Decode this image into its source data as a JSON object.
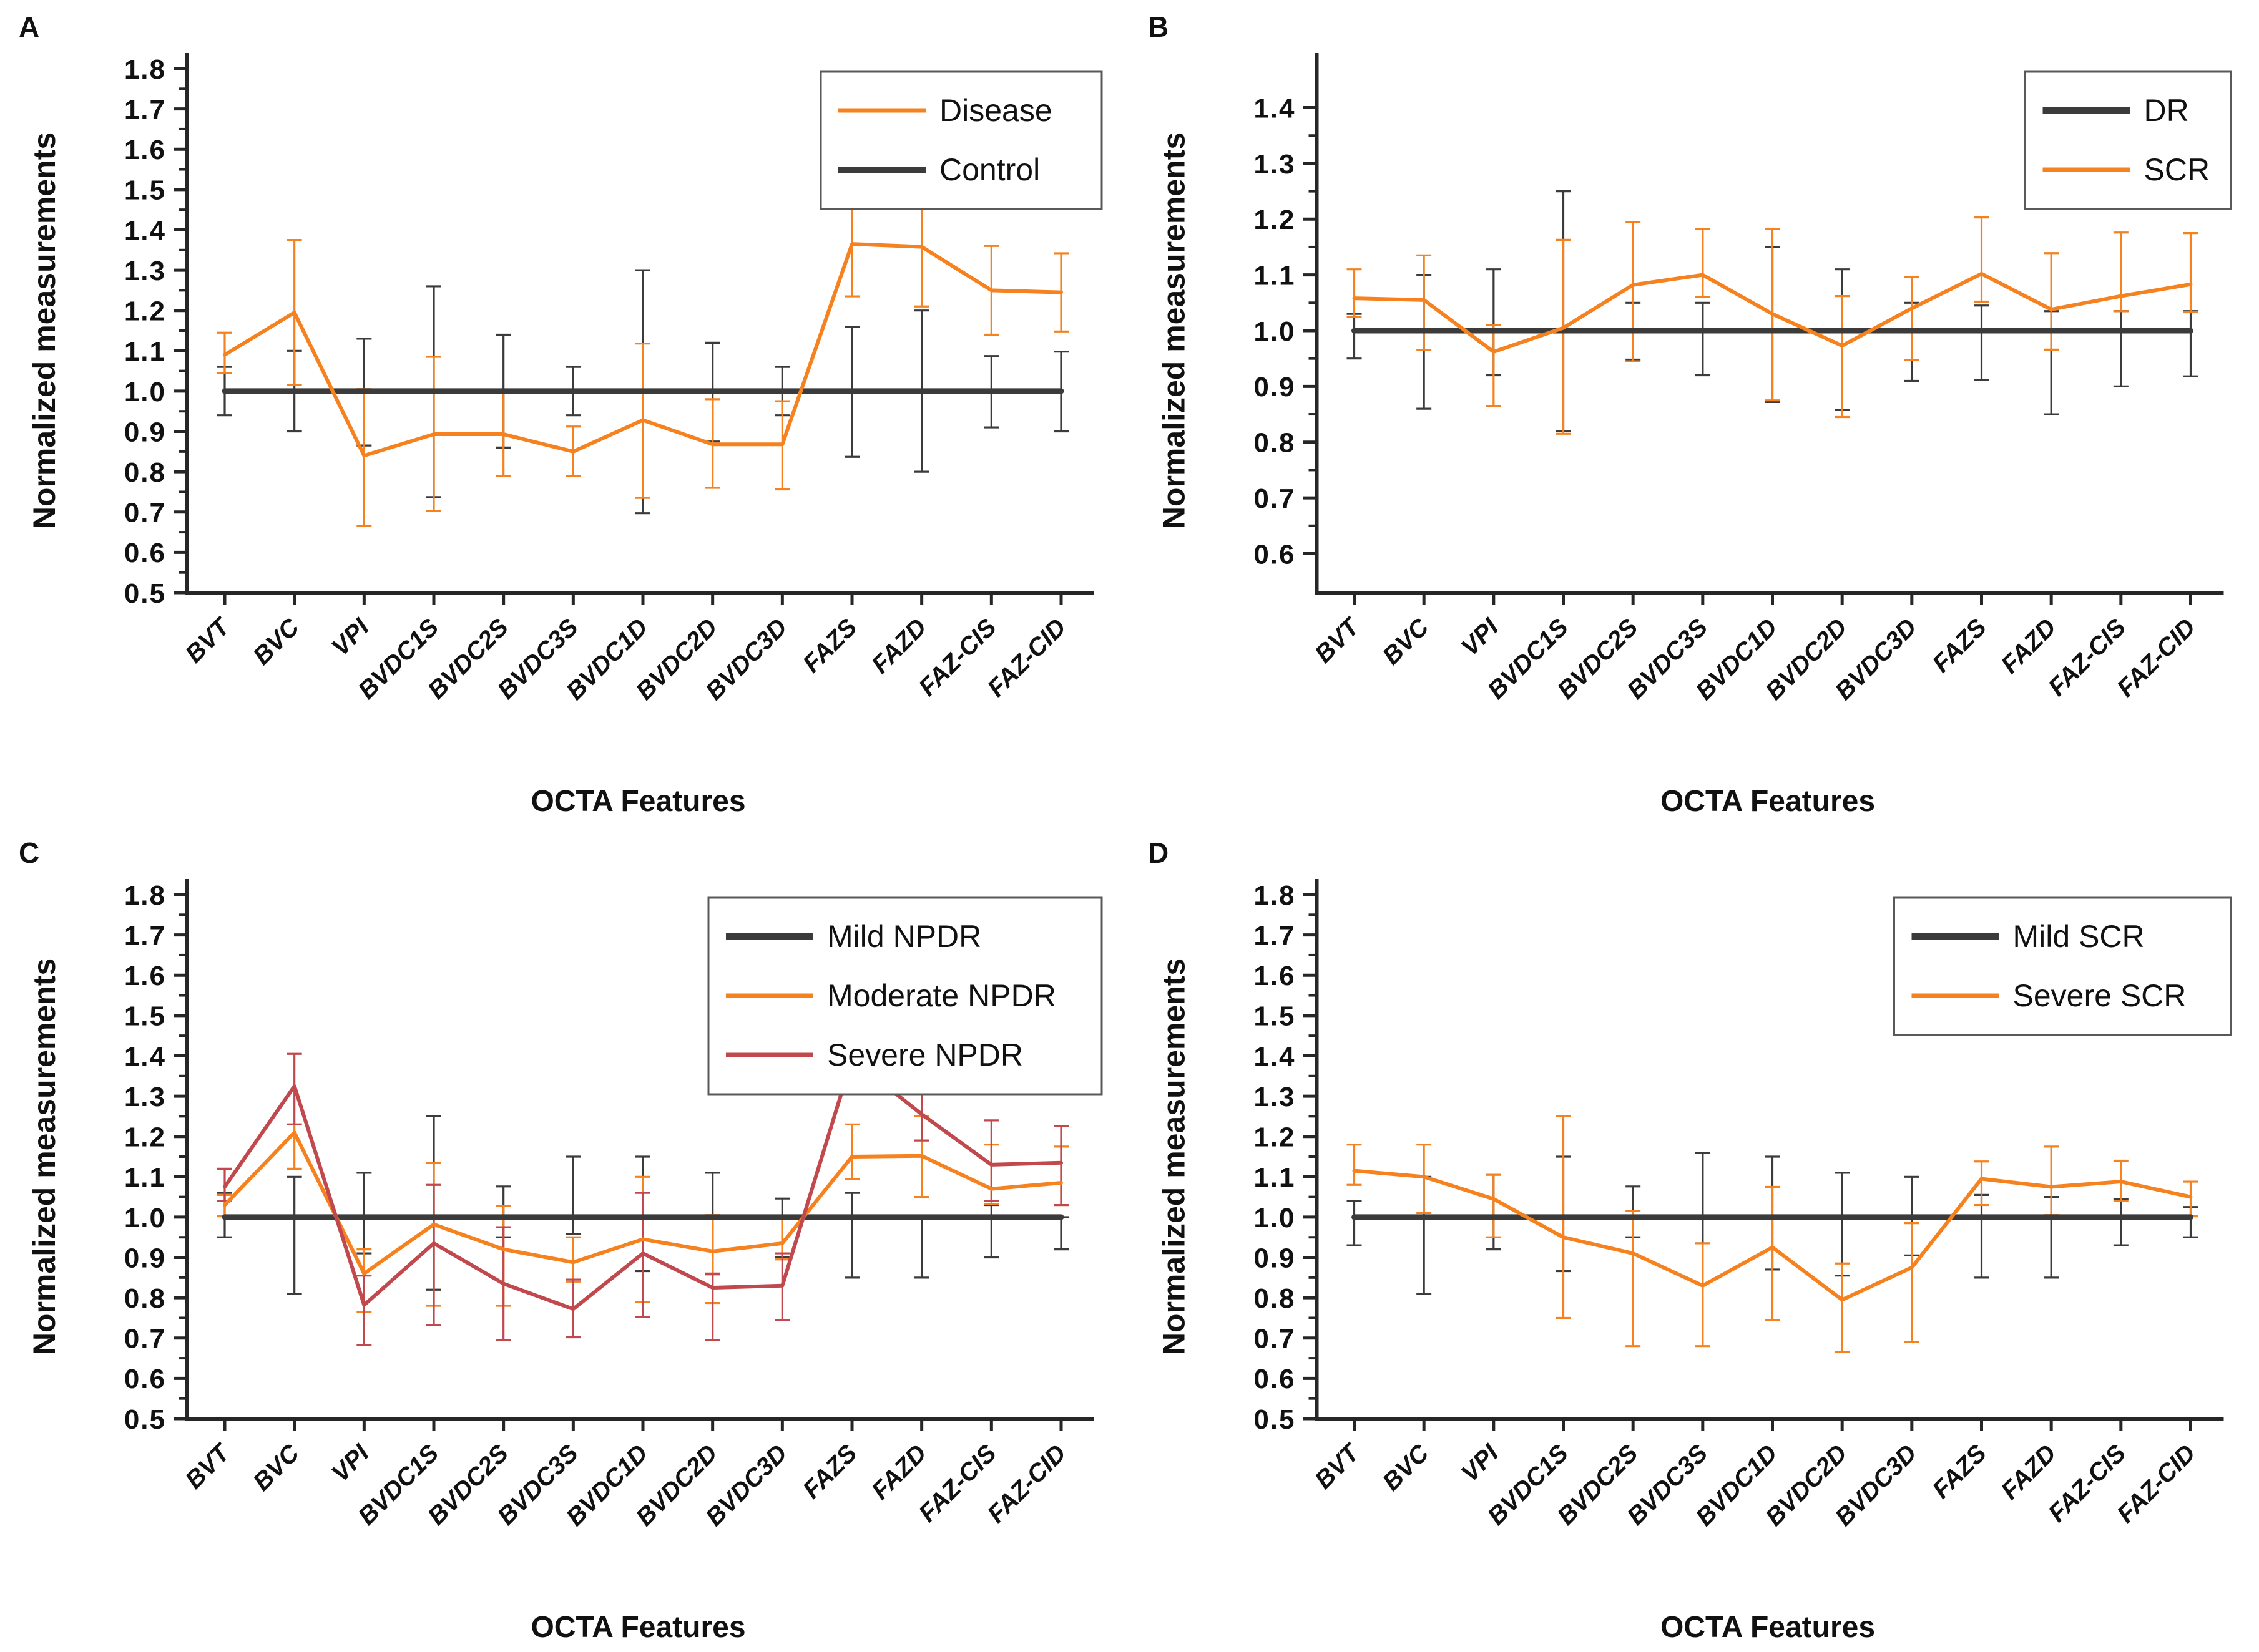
{
  "figure": {
    "background": "#ffffff",
    "axis_color": "#262626",
    "text_color": "#111111",
    "xlabel": "OCTA Features",
    "ylabel": "Normalized measurements",
    "panel_letters": [
      "A",
      "B",
      "C",
      "D"
    ]
  },
  "chart_data": [
    {
      "panel": "A",
      "type": "line",
      "title": "",
      "xlabel": "OCTA Features",
      "ylabel": "Normalized measurements",
      "categories": [
        "BVT",
        "BVC",
        "VPI",
        "BVDC1S",
        "BVDC2S",
        "BVDC3S",
        "BVDC1D",
        "BVDC2D",
        "BVDC3D",
        "FAZS",
        "FAZD",
        "FAZ-CIS",
        "FAZ-CID"
      ],
      "ylim": [
        0.5,
        1.8
      ],
      "yticks": [
        0.5,
        0.6,
        0.7,
        0.8,
        0.9,
        1.0,
        1.1,
        1.2,
        1.3,
        1.4,
        1.5,
        1.6,
        1.7,
        1.8
      ],
      "grid": false,
      "legend_position": "top-right",
      "legend_order": [
        1,
        0
      ],
      "series": [
        {
          "name": "Control",
          "color": "#3b3b3b",
          "lw": 9,
          "values": [
            1.0,
            1.0,
            1.0,
            1.0,
            1.0,
            1.0,
            1.0,
            1.0,
            1.0,
            1.0,
            1.0,
            1.0,
            1.0
          ],
          "err_lo": [
            0.94,
            0.9,
            0.865,
            0.737,
            0.86,
            0.94,
            0.697,
            0.875,
            0.94,
            0.837,
            0.8,
            0.91,
            0.9
          ],
          "err_hi": [
            1.06,
            1.1,
            1.13,
            1.26,
            1.14,
            1.06,
            1.3,
            1.12,
            1.06,
            1.16,
            1.2,
            1.087,
            1.098
          ]
        },
        {
          "name": "Disease",
          "color": "#f5821f",
          "lw": 6,
          "values": [
            1.09,
            1.195,
            0.84,
            0.893,
            0.893,
            0.85,
            0.928,
            0.868,
            0.868,
            1.365,
            1.358,
            1.25,
            1.245
          ],
          "err_lo": [
            1.045,
            1.015,
            0.665,
            0.703,
            0.79,
            0.79,
            0.735,
            0.76,
            0.756,
            1.235,
            1.21,
            1.14,
            1.148
          ],
          "err_hi": [
            1.145,
            1.375,
            1.005,
            1.085,
            0.995,
            0.912,
            1.118,
            0.98,
            0.975,
            1.498,
            1.51,
            1.36,
            1.342
          ]
        }
      ]
    },
    {
      "panel": "B",
      "type": "line",
      "title": "",
      "xlabel": "OCTA Features",
      "ylabel": "Normalized measurements",
      "categories": [
        "BVT",
        "BVC",
        "VPI",
        "BVDC1S",
        "BVDC2S",
        "BVDC3S",
        "BVDC1D",
        "BVDC2D",
        "BVDC3D",
        "FAZS",
        "FAZD",
        "FAZ-CIS",
        "FAZ-CID"
      ],
      "ylim": [
        0.53,
        1.47
      ],
      "yticks": [
        0.6,
        0.7,
        0.8,
        0.9,
        1.0,
        1.1,
        1.2,
        1.3,
        1.4
      ],
      "grid": false,
      "legend_position": "top-right",
      "legend_order": [
        0,
        1
      ],
      "series": [
        {
          "name": "DR",
          "color": "#3b3b3b",
          "lw": 9,
          "values": [
            1.0,
            1.0,
            1.0,
            1.0,
            1.0,
            1.0,
            1.0,
            1.0,
            1.0,
            1.0,
            1.0,
            1.0,
            1.0
          ],
          "err_lo": [
            0.95,
            0.86,
            0.92,
            0.82,
            0.948,
            0.92,
            0.872,
            0.858,
            0.91,
            0.912,
            0.85,
            0.9,
            0.918
          ],
          "err_hi": [
            1.03,
            1.1,
            1.11,
            1.25,
            1.05,
            1.05,
            1.15,
            1.11,
            1.05,
            1.045,
            1.035,
            1.035,
            1.035
          ]
        },
        {
          "name": "SCR",
          "color": "#f5821f",
          "lw": 6,
          "values": [
            1.058,
            1.055,
            0.962,
            1.005,
            1.082,
            1.1,
            1.03,
            0.973,
            1.04,
            1.102,
            1.038,
            1.062,
            1.083
          ],
          "err_lo": [
            1.025,
            0.965,
            0.865,
            0.815,
            0.945,
            1.06,
            0.875,
            0.845,
            0.947,
            1.052,
            0.966,
            1.035,
            1.033
          ],
          "err_hi": [
            1.11,
            1.135,
            1.01,
            1.163,
            1.195,
            1.182,
            1.182,
            1.062,
            1.096,
            1.203,
            1.139,
            1.176,
            1.175
          ]
        }
      ]
    },
    {
      "panel": "C",
      "type": "line",
      "title": "",
      "xlabel": "OCTA Features",
      "ylabel": "Normalized measurements",
      "categories": [
        "BVT",
        "BVC",
        "VPI",
        "BVDC1S",
        "BVDC2S",
        "BVDC3S",
        "BVDC1D",
        "BVDC2D",
        "BVDC3D",
        "FAZS",
        "FAZD",
        "FAZ-CIS",
        "FAZ-CID"
      ],
      "ylim": [
        0.5,
        1.8
      ],
      "yticks": [
        0.5,
        0.6,
        0.7,
        0.8,
        0.9,
        1.0,
        1.1,
        1.2,
        1.3,
        1.4,
        1.5,
        1.6,
        1.7,
        1.8
      ],
      "grid": false,
      "legend_position": "top-right",
      "legend_order": [
        0,
        1,
        2
      ],
      "series": [
        {
          "name": "Mild NPDR",
          "color": "#3b3b3b",
          "lw": 9,
          "values": [
            1.0,
            1.0,
            1.0,
            1.0,
            1.0,
            1.0,
            1.0,
            1.0,
            1.0,
            1.0,
            1.0,
            1.0,
            1.0
          ],
          "err_lo": [
            0.95,
            0.81,
            0.91,
            0.82,
            0.95,
            0.958,
            0.866,
            0.858,
            0.9,
            0.85,
            0.85,
            0.9,
            0.92
          ],
          "err_hi": [
            1.06,
            1.1,
            1.11,
            1.25,
            1.076,
            1.15,
            1.15,
            1.11,
            1.046,
            1.06,
            1.0,
            1.03,
            1.0
          ]
        },
        {
          "name": "Moderate NPDR",
          "color": "#f5821f",
          "lw": 6,
          "values": [
            1.03,
            1.21,
            0.86,
            0.982,
            0.92,
            0.888,
            0.945,
            0.915,
            0.935,
            1.15,
            1.152,
            1.07,
            1.085
          ],
          "err_lo": [
            1.002,
            1.12,
            0.765,
            0.78,
            0.78,
            0.84,
            0.79,
            0.787,
            0.895,
            1.095,
            1.05,
            1.032,
            1.03
          ],
          "err_hi": [
            1.055,
            1.23,
            0.92,
            1.135,
            1.028,
            0.95,
            1.1,
            1.005,
            1.0,
            1.23,
            1.25,
            1.18,
            1.175
          ]
        },
        {
          "name": "Severe NPDR",
          "color": "#c1494e",
          "lw": 6,
          "values": [
            1.075,
            1.325,
            0.782,
            0.935,
            0.835,
            0.772,
            0.91,
            0.825,
            0.83,
            1.393,
            1.255,
            1.13,
            1.135
          ],
          "err_lo": [
            1.04,
            1.23,
            0.682,
            0.732,
            0.695,
            0.702,
            0.752,
            0.695,
            0.745,
            1.325,
            1.19,
            1.04,
            1.03
          ],
          "err_hi": [
            1.12,
            1.405,
            0.855,
            1.08,
            0.975,
            0.845,
            1.06,
            0.86,
            0.91,
            1.435,
            1.358,
            1.24,
            1.226
          ]
        }
      ]
    },
    {
      "panel": "D",
      "type": "line",
      "title": "",
      "xlabel": "OCTA Features",
      "ylabel": "Normalized measurements",
      "categories": [
        "BVT",
        "BVC",
        "VPI",
        "BVDC1S",
        "BVDC2S",
        "BVDC3S",
        "BVDC1D",
        "BVDC2D",
        "BVDC3D",
        "FAZS",
        "FAZD",
        "FAZ-CIS",
        "FAZ-CID"
      ],
      "ylim": [
        0.5,
        1.8
      ],
      "yticks": [
        0.5,
        0.6,
        0.7,
        0.8,
        0.9,
        1.0,
        1.1,
        1.2,
        1.3,
        1.4,
        1.5,
        1.6,
        1.7,
        1.8
      ],
      "grid": false,
      "legend_position": "top-right",
      "legend_order": [
        0,
        1
      ],
      "series": [
        {
          "name": "Mild SCR",
          "color": "#3b3b3b",
          "lw": 9,
          "values": [
            1.0,
            1.0,
            1.0,
            1.0,
            1.0,
            1.0,
            1.0,
            1.0,
            1.0,
            1.0,
            1.0,
            1.0,
            1.0
          ],
          "err_lo": [
            0.93,
            0.81,
            0.92,
            0.866,
            0.95,
            0.935,
            0.87,
            0.855,
            0.905,
            0.85,
            0.85,
            0.93,
            0.95
          ],
          "err_hi": [
            1.04,
            1.1,
            1.105,
            1.15,
            1.076,
            1.16,
            1.15,
            1.11,
            1.1,
            1.055,
            1.05,
            1.045,
            1.025
          ]
        },
        {
          "name": "Severe SCR",
          "color": "#f5821f",
          "lw": 6,
          "values": [
            1.115,
            1.1,
            1.045,
            0.95,
            0.91,
            0.83,
            0.925,
            0.795,
            0.875,
            1.095,
            1.075,
            1.088,
            1.05
          ],
          "err_lo": [
            1.08,
            1.01,
            0.95,
            0.75,
            0.68,
            0.68,
            0.745,
            0.665,
            0.69,
            1.03,
            1.005,
            1.04,
            1.002
          ],
          "err_hi": [
            1.18,
            1.18,
            1.105,
            1.25,
            1.015,
            0.935,
            1.075,
            0.885,
            0.985,
            1.138,
            1.175,
            1.14,
            1.088
          ]
        }
      ]
    }
  ]
}
